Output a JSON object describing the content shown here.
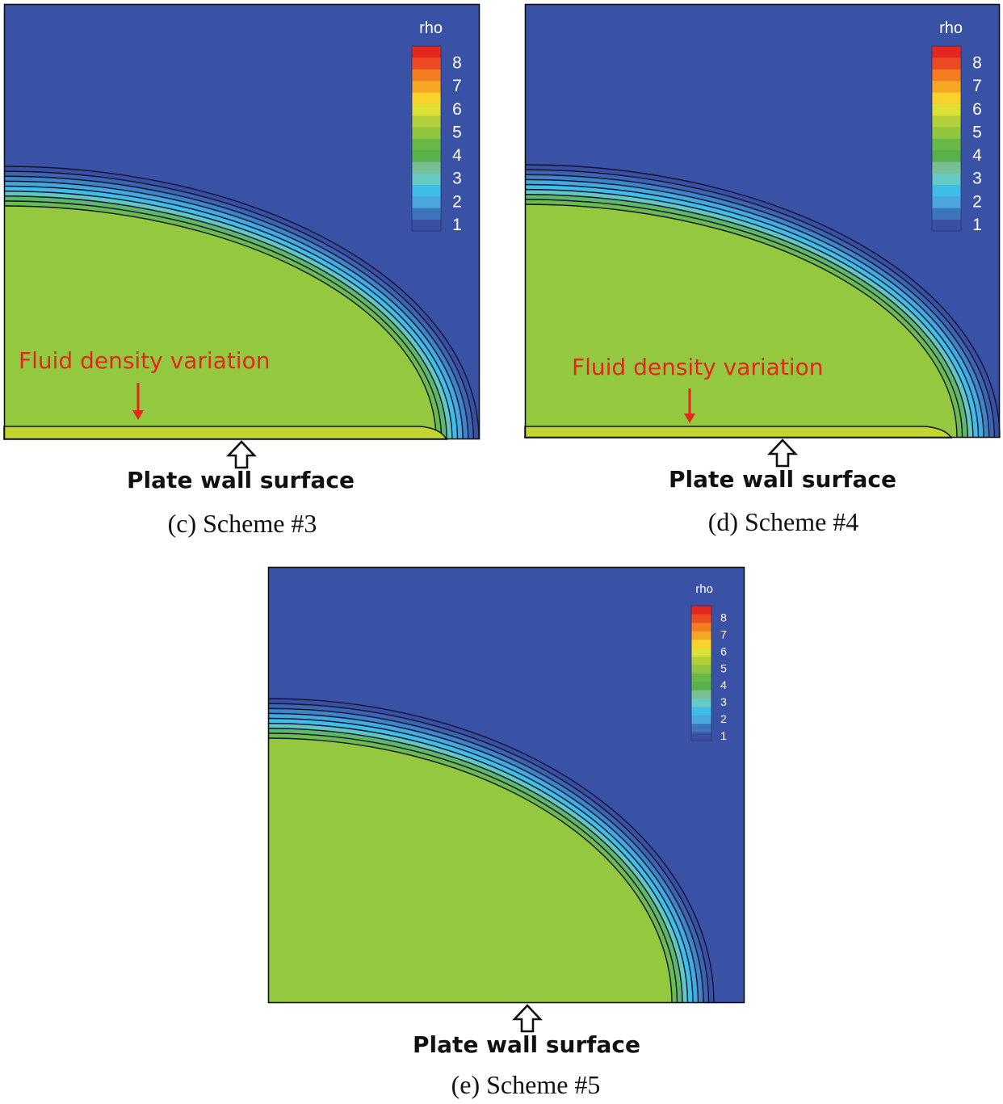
{
  "colors": {
    "background_field": "#3952a6",
    "core_field": "#93c83f",
    "contour_line": "#0d1530",
    "annotation": "#e52620",
    "legend": [
      "#3a4ea3",
      "#3e74bb",
      "#4aa6dc",
      "#3dbde8",
      "#65c9c5",
      "#78bf96",
      "#58b149",
      "#67b845",
      "#8ec63f",
      "#b4cf3a",
      "#dde135",
      "#fbd12c",
      "#f5a623",
      "#f47d20",
      "#ef4b22",
      "#e5251f"
    ]
  },
  "panels": [
    {
      "id": "c",
      "legend_title": "rho",
      "legend_ticks": [
        "1",
        "2",
        "3",
        "4",
        "5",
        "6",
        "7",
        "8"
      ],
      "annotation": "Fluid density variation",
      "wall_label": "Plate wall surface",
      "caption": "(c) Scheme #3"
    },
    {
      "id": "d",
      "legend_title": "rho",
      "legend_ticks": [
        "1",
        "2",
        "3",
        "4",
        "5",
        "6",
        "7",
        "8"
      ],
      "annotation": "Fluid density variation",
      "wall_label": "Plate wall surface",
      "caption": "(d) Scheme #4"
    },
    {
      "id": "e",
      "legend_title": "rho",
      "legend_ticks": [
        "1",
        "2",
        "3",
        "4",
        "5",
        "6",
        "7",
        "8"
      ],
      "annotation": null,
      "wall_label": "Plate wall surface",
      "caption": "(e) Scheme #5"
    }
  ]
}
